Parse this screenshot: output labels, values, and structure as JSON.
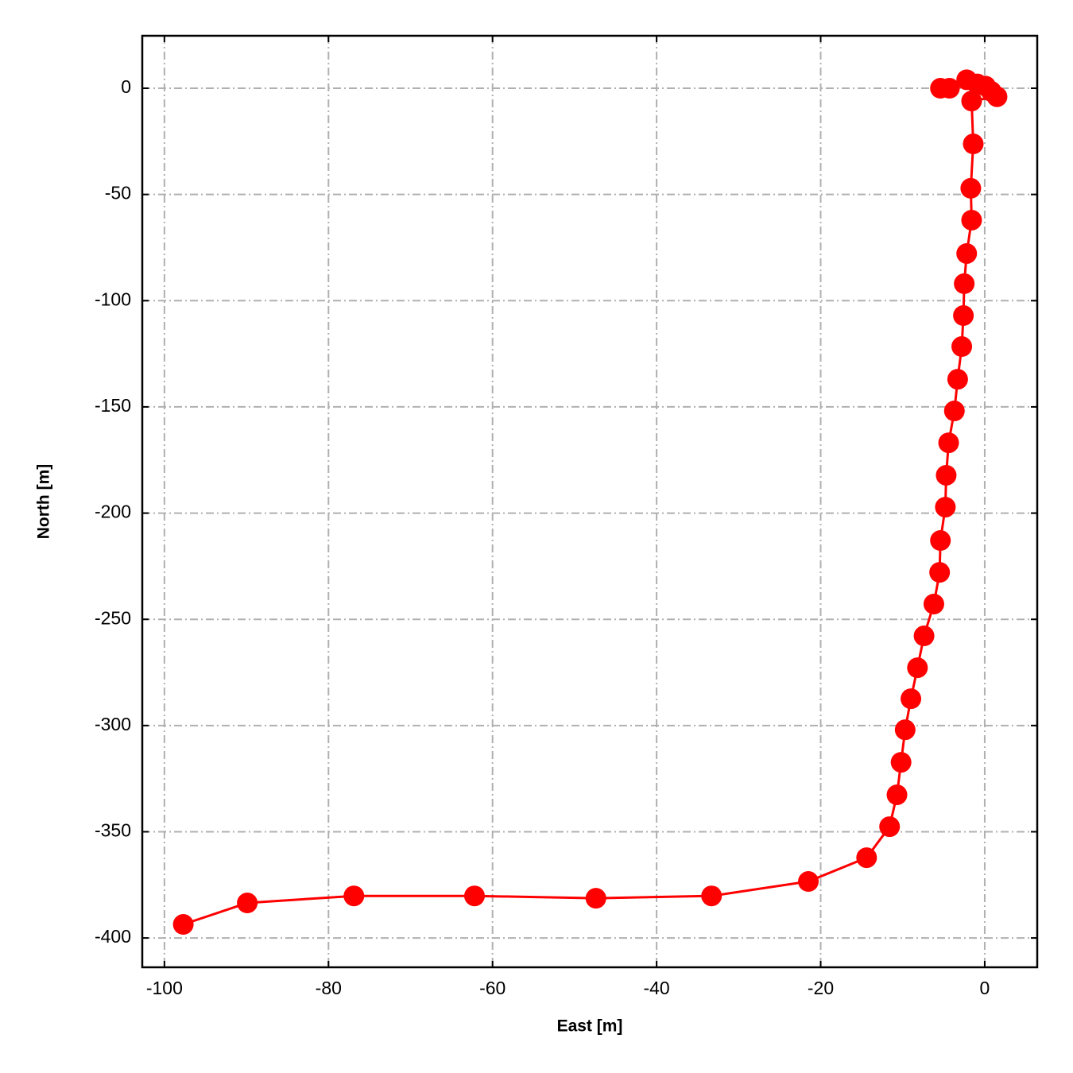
{
  "chart_data": {
    "type": "line",
    "x_label": "East [m]",
    "y_label": "North [m]",
    "x": [
      -5.4,
      -4.3,
      -2.2,
      -0.9,
      0.1,
      0.8,
      1.5,
      -1.6,
      -1.4,
      -1.7,
      -1.6,
      -2.2,
      -2.5,
      -2.6,
      -2.8,
      -3.3,
      -3.7,
      -4.4,
      -4.7,
      -4.8,
      -5.4,
      -5.5,
      -6.2,
      -7.4,
      -8.2,
      -9.0,
      -9.7,
      -10.2,
      -10.7,
      -11.6,
      -14.4,
      -21.5,
      -33.3,
      -47.4,
      -62.2,
      -76.9,
      -89.9,
      -97.7
    ],
    "values": [
      0,
      0,
      4,
      2,
      1,
      -1.5,
      -4,
      -6,
      -26.2,
      -47.1,
      -62.1,
      -77.8,
      -92.0,
      -107.0,
      -121.6,
      -137.0,
      -151.9,
      -166.9,
      -182.2,
      -197.2,
      -212.9,
      -227.9,
      -242.8,
      -257.8,
      -272.8,
      -287.4,
      -302.0,
      -317.3,
      -332.6,
      -347.6,
      -362.2,
      -373.4,
      -380.2,
      -381.3,
      -380.2,
      -380.2,
      -383.5,
      -393.6
    ],
    "color": "#ff0000",
    "xlim": [
      -102.7,
      6.4
    ],
    "xticks": [
      -100,
      -80,
      -60,
      -40,
      -20,
      0
    ],
    "ylim": [
      -413.8,
      24.7
    ],
    "yticks": [
      0,
      -50,
      -100,
      -150,
      -200,
      -250,
      -300,
      -350,
      -400
    ],
    "grid": true
  }
}
